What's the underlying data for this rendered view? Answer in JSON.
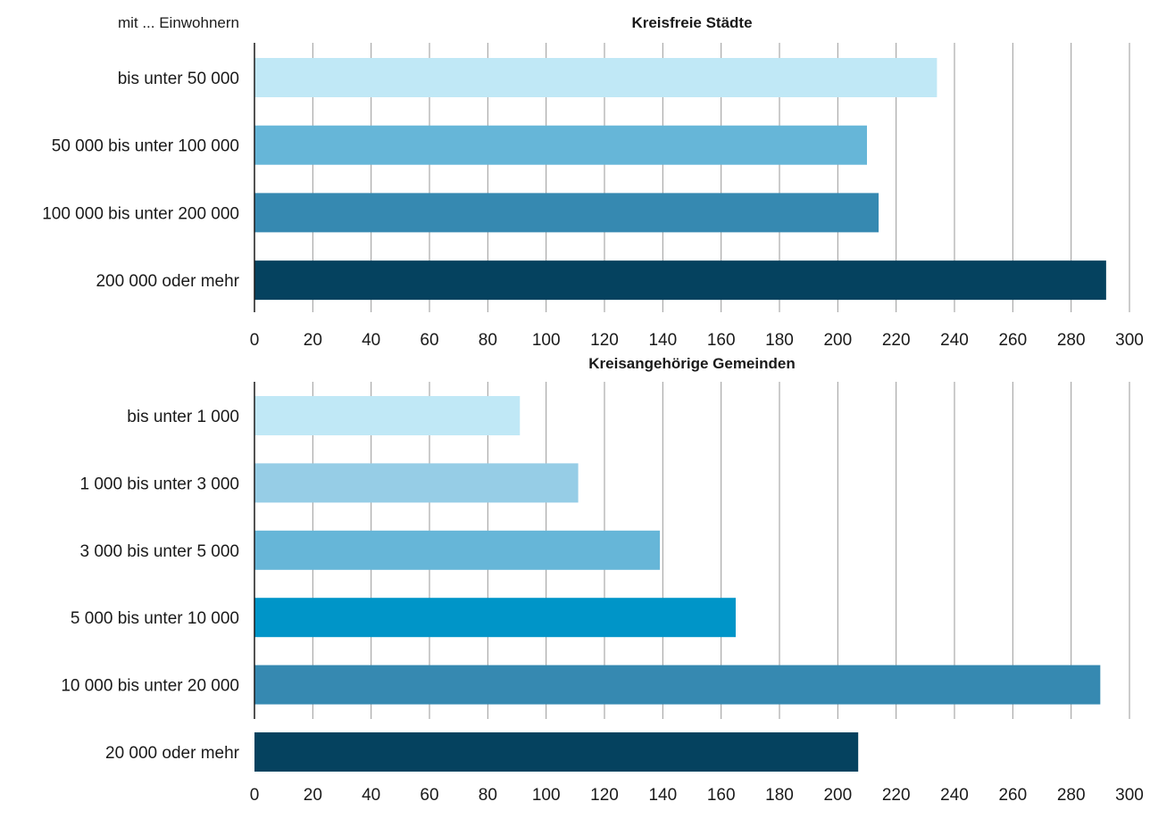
{
  "header_label": "mit ... Einwohnern",
  "chart_data": [
    {
      "type": "bar",
      "orientation": "horizontal",
      "title": "Kreisfreie Städte",
      "categories": [
        "bis unter 50 000",
        "50 000 bis unter 100 000",
        "100 000 bis unter 200 000",
        "200 000 oder mehr"
      ],
      "values": [
        234,
        210,
        214,
        292
      ],
      "colors": [
        "#c0e8f6",
        "#66b6d8",
        "#3689b1",
        "#05425f"
      ],
      "xlim": [
        0,
        300
      ],
      "ticks": [
        "0",
        "20",
        "40",
        "60",
        "80",
        "100",
        "120",
        "140",
        "160",
        "180",
        "200",
        "220",
        "240",
        "260",
        "280",
        "300"
      ],
      "grid": "vertical"
    },
    {
      "type": "bar",
      "orientation": "horizontal",
      "title": "Kreisangehörige Gemeinden",
      "categories": [
        "bis unter 1 000",
        "1 000 bis unter 3 000",
        "3 000 bis unter 5 000",
        "5 000 bis unter 10 000",
        "10 000 bis unter 20 000",
        "20 000 oder mehr"
      ],
      "values": [
        91,
        111,
        139,
        165,
        290,
        207
      ],
      "colors": [
        "#c0e8f6",
        "#96cde6",
        "#66b6d8",
        "#0095c8",
        "#3689b1",
        "#05425f"
      ],
      "xlim": [
        0,
        300
      ],
      "ticks": [
        "0",
        "20",
        "40",
        "60",
        "80",
        "100",
        "120",
        "140",
        "160",
        "180",
        "200",
        "220",
        "240",
        "260",
        "280",
        "300"
      ],
      "grid": "vertical"
    }
  ]
}
